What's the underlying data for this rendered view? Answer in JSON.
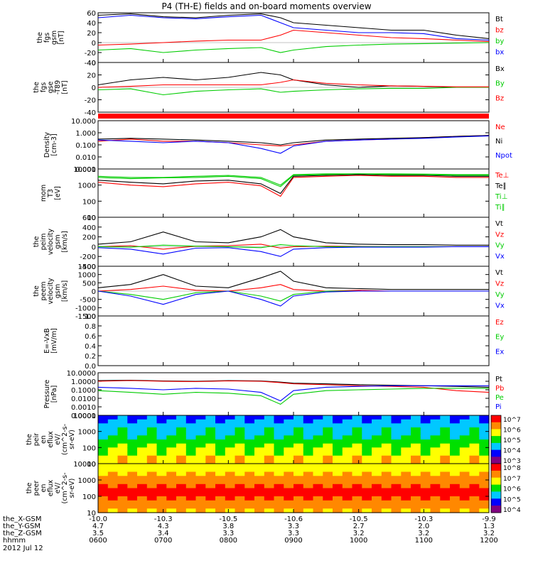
{
  "title": "P4 (TH-E) fields and on-board moments overview",
  "colors": {
    "black": "#000000",
    "red": "#ff0000",
    "green": "#00cc00",
    "blue": "#0000ff",
    "colorbar": [
      "#800080",
      "#0000ff",
      "#00c8ff",
      "#00e000",
      "#ffff00",
      "#ff8800",
      "#ff0000"
    ]
  },
  "chart_data": [
    {
      "type": "line",
      "ylabel": [
        "the",
        "fgs",
        "gsm",
        "[nT]"
      ],
      "ylim": [
        -40,
        60
      ],
      "yticks": [
        "60",
        "40",
        "20",
        "0",
        "-20",
        "-40"
      ],
      "legend": [
        {
          "name": "Bt",
          "color": "#000000"
        },
        {
          "name": "bz",
          "color": "#ff0000"
        },
        {
          "name": "by",
          "color": "#00cc00"
        },
        {
          "name": "bx",
          "color": "#0000ff"
        }
      ],
      "x_hours": [
        6.0,
        6.5,
        7.0,
        7.5,
        8.0,
        8.5,
        8.8,
        9.0,
        9.5,
        10.0,
        10.5,
        11.0,
        11.5,
        12.0
      ],
      "series": [
        {
          "name": "Bt",
          "values": [
            55,
            58,
            52,
            50,
            55,
            58,
            50,
            40,
            35,
            30,
            25,
            25,
            15,
            8
          ]
        },
        {
          "name": "bz",
          "values": [
            -5,
            -3,
            0,
            3,
            5,
            5,
            15,
            25,
            20,
            15,
            10,
            8,
            5,
            2
          ]
        },
        {
          "name": "by",
          "values": [
            -15,
            -12,
            -20,
            -15,
            -12,
            -10,
            -20,
            -15,
            -8,
            -5,
            -3,
            -2,
            -1,
            0
          ]
        },
        {
          "name": "bx",
          "values": [
            50,
            55,
            50,
            48,
            52,
            55,
            40,
            30,
            25,
            20,
            20,
            18,
            8,
            5
          ]
        }
      ]
    },
    {
      "type": "line",
      "ylabel": [
        "the",
        "fgs",
        "gse",
        "-T89",
        "[nT]"
      ],
      "ylim": [
        -50,
        50
      ],
      "yticks": [
        "40",
        "20",
        "0",
        "-20",
        "-40"
      ],
      "legend": [
        {
          "name": "Bx",
          "color": "#000000"
        },
        {
          "name": "By",
          "color": "#00cc00"
        },
        {
          "name": "Bz",
          "color": "#ff0000"
        }
      ],
      "x_hours": [
        6.0,
        6.5,
        7.0,
        7.5,
        8.0,
        8.5,
        8.8,
        9.0,
        9.5,
        10.0,
        10.5,
        11.0,
        11.5,
        12.0
      ],
      "series": [
        {
          "name": "Bx",
          "values": [
            5,
            15,
            20,
            15,
            20,
            30,
            25,
            15,
            5,
            0,
            3,
            2,
            0,
            0
          ]
        },
        {
          "name": "By",
          "values": [
            -5,
            -3,
            -15,
            -8,
            -5,
            -3,
            -10,
            -8,
            -5,
            -3,
            -2,
            -2,
            0,
            0
          ]
        },
        {
          "name": "Bz",
          "values": [
            0,
            2,
            5,
            5,
            5,
            5,
            10,
            15,
            8,
            5,
            3,
            2,
            1,
            1
          ]
        }
      ]
    },
    {
      "type": "line",
      "ylabel": [
        "Density",
        "[cm-3]"
      ],
      "ylim": [
        0.001,
        10
      ],
      "scale": "log",
      "yticks": [
        "10.000",
        "1.000",
        "0.100",
        "0.010",
        "0.001"
      ],
      "legend": [
        {
          "name": "Ne",
          "color": "#ff0000"
        },
        {
          "name": "Ni",
          "color": "#000000"
        },
        {
          "name": "Npot",
          "color": "#0000ff"
        }
      ],
      "x_hours": [
        6.0,
        6.5,
        7.0,
        7.5,
        8.0,
        8.5,
        8.8,
        9.0,
        9.5,
        10.0,
        10.5,
        11.0,
        11.5,
        12.0
      ],
      "series": [
        {
          "name": "Ne",
          "values": [
            0.2,
            0.3,
            0.2,
            0.2,
            0.15,
            0.1,
            0.08,
            0.1,
            0.2,
            0.25,
            0.3,
            0.4,
            0.5,
            0.6
          ]
        },
        {
          "name": "Ni",
          "values": [
            0.3,
            0.35,
            0.3,
            0.25,
            0.2,
            0.15,
            0.1,
            0.15,
            0.25,
            0.3,
            0.35,
            0.4,
            0.5,
            0.6
          ]
        },
        {
          "name": "Npot",
          "values": [
            0.25,
            0.2,
            0.15,
            0.2,
            0.15,
            0.05,
            0.02,
            0.08,
            0.2,
            0.25,
            0.3,
            0.35,
            0.45,
            0.55
          ]
        }
      ]
    },
    {
      "type": "line",
      "ylabel": [
        "mom",
        "T3",
        "[eV]"
      ],
      "ylim": [
        10,
        10000
      ],
      "scale": "log",
      "yticks": [
        "10000",
        "1000",
        "100",
        "10"
      ],
      "legend": [
        {
          "name": "Te⊥",
          "color": "#ff0000"
        },
        {
          "name": "Te∥",
          "color": "#000000"
        },
        {
          "name": "Ti⊥",
          "color": "#00cc00"
        },
        {
          "name": "Ti∥",
          "color": "#00cc00"
        }
      ],
      "x_hours": [
        6.0,
        6.5,
        7.0,
        7.5,
        8.0,
        8.5,
        8.8,
        9.0,
        9.5,
        10.0,
        10.5,
        11.0,
        11.5,
        12.0
      ],
      "series": [
        {
          "name": "Te⊥",
          "values": [
            1500,
            1000,
            800,
            1200,
            1500,
            900,
            200,
            3000,
            3500,
            4000,
            3500,
            3500,
            3000,
            3000
          ]
        },
        {
          "name": "Te∥",
          "values": [
            2000,
            1500,
            1200,
            1800,
            2000,
            1200,
            300,
            3500,
            4000,
            4500,
            4000,
            4000,
            3500,
            3500
          ]
        },
        {
          "name": "Ti⊥",
          "values": [
            3000,
            2500,
            2800,
            3000,
            3500,
            2500,
            800,
            4000,
            4500,
            5000,
            4500,
            4500,
            4000,
            4000
          ]
        },
        {
          "name": "Ti∥",
          "values": [
            3500,
            3000,
            3000,
            3500,
            4000,
            3000,
            1000,
            4500,
            5000,
            5000,
            5000,
            4800,
            4500,
            4500
          ]
        }
      ]
    },
    {
      "type": "line",
      "ylabel": [
        "the",
        "peim",
        "velocity",
        "gsm",
        "[km/s]"
      ],
      "ylim": [
        -400,
        600
      ],
      "yticks": [
        "600",
        "400",
        "200",
        "0",
        "-200",
        "-400"
      ],
      "legend": [
        {
          "name": "Vt",
          "color": "#000000"
        },
        {
          "name": "Vz",
          "color": "#ff0000"
        },
        {
          "name": "Vy",
          "color": "#00cc00"
        },
        {
          "name": "Vx",
          "color": "#0000ff"
        }
      ],
      "x_hours": [
        6.0,
        6.5,
        7.0,
        7.5,
        8.0,
        8.5,
        8.8,
        9.0,
        9.5,
        10.0,
        10.5,
        11.0,
        11.5,
        12.0
      ],
      "series": [
        {
          "name": "Vt",
          "values": [
            50,
            100,
            300,
            100,
            80,
            200,
            350,
            200,
            80,
            50,
            40,
            40,
            30,
            30
          ]
        },
        {
          "name": "Vz",
          "values": [
            0,
            20,
            -50,
            10,
            20,
            50,
            -30,
            0,
            10,
            5,
            0,
            0,
            0,
            0
          ]
        },
        {
          "name": "Vy",
          "values": [
            0,
            -10,
            30,
            10,
            0,
            -20,
            40,
            20,
            0,
            0,
            0,
            0,
            0,
            0
          ]
        },
        {
          "name": "Vx",
          "values": [
            -20,
            -50,
            -150,
            -30,
            -20,
            -100,
            -200,
            -50,
            -20,
            -10,
            -10,
            -10,
            0,
            0
          ]
        }
      ]
    },
    {
      "type": "line",
      "ylabel": [
        "the",
        "peem",
        "velocity",
        "gsm",
        "[km/s]"
      ],
      "ylim": [
        -1500,
        1500
      ],
      "yticks": [
        "1500",
        "1000",
        "500",
        "0",
        "-500",
        "-1000",
        "-1500"
      ],
      "legend": [
        {
          "name": "Vt",
          "color": "#000000"
        },
        {
          "name": "Vz",
          "color": "#ff0000"
        },
        {
          "name": "Vy",
          "color": "#00cc00"
        },
        {
          "name": "Vx",
          "color": "#0000ff"
        }
      ],
      "x_hours": [
        6.0,
        6.5,
        7.0,
        7.5,
        8.0,
        8.5,
        8.8,
        9.0,
        9.5,
        10.0,
        10.5,
        11.0,
        11.5,
        12.0
      ],
      "series": [
        {
          "name": "Vt",
          "values": [
            200,
            400,
            1000,
            300,
            200,
            800,
            1200,
            600,
            200,
            150,
            100,
            100,
            100,
            100
          ]
        },
        {
          "name": "Vz",
          "values": [
            0,
            100,
            300,
            50,
            0,
            200,
            400,
            100,
            0,
            50,
            0,
            0,
            0,
            0
          ]
        },
        {
          "name": "Vy",
          "values": [
            0,
            -200,
            -500,
            -100,
            0,
            -300,
            -600,
            -200,
            0,
            0,
            0,
            0,
            0,
            0
          ]
        },
        {
          "name": "Vx",
          "values": [
            0,
            -300,
            -800,
            -200,
            0,
            -500,
            -900,
            -300,
            -50,
            0,
            0,
            0,
            0,
            0
          ]
        }
      ]
    },
    {
      "type": "line",
      "ylabel": [
        "E=-VxB",
        "[mV/m]"
      ],
      "ylim": [
        0,
        1
      ],
      "yticks": [
        "1.0",
        "0.8",
        "0.6",
        "0.4",
        "0.2",
        "0.0"
      ],
      "legend": [
        {
          "name": "Ez",
          "color": "#ff0000"
        },
        {
          "name": "Ey",
          "color": "#00cc00"
        },
        {
          "name": "Ex",
          "color": "#0000ff"
        }
      ],
      "series": []
    },
    {
      "type": "line",
      "ylabel": [
        "Pressure",
        "[nPa]"
      ],
      "ylim": [
        0.0001,
        10
      ],
      "scale": "log",
      "yticks": [
        "10.0000",
        "1.0000",
        "0.1000",
        "0.0100",
        "0.0010",
        "0.0001"
      ],
      "legend": [
        {
          "name": "Pt",
          "color": "#000000"
        },
        {
          "name": "Pb",
          "color": "#ff0000"
        },
        {
          "name": "Pe",
          "color": "#00cc00"
        },
        {
          "name": "Pi",
          "color": "#0000ff"
        }
      ],
      "x_hours": [
        6.0,
        6.5,
        7.0,
        7.5,
        8.0,
        8.5,
        8.8,
        9.0,
        9.5,
        10.0,
        10.5,
        11.0,
        11.5,
        12.0
      ],
      "series": [
        {
          "name": "Pt",
          "values": [
            1.2,
            1.3,
            1.1,
            1.0,
            1.2,
            1.1,
            0.8,
            0.6,
            0.5,
            0.4,
            0.35,
            0.3,
            0.25,
            0.2
          ]
        },
        {
          "name": "Pb",
          "values": [
            1.0,
            1.2,
            1.0,
            0.9,
            1.1,
            1.0,
            0.7,
            0.5,
            0.4,
            0.3,
            0.25,
            0.2,
            0.08,
            0.05
          ]
        },
        {
          "name": "Pe",
          "values": [
            0.08,
            0.05,
            0.03,
            0.05,
            0.04,
            0.02,
            0.002,
            0.03,
            0.08,
            0.1,
            0.12,
            0.15,
            0.15,
            0.15
          ]
        },
        {
          "name": "Pi",
          "values": [
            0.2,
            0.15,
            0.1,
            0.15,
            0.12,
            0.05,
            0.005,
            0.08,
            0.2,
            0.25,
            0.3,
            0.3,
            0.3,
            0.3
          ]
        }
      ]
    },
    {
      "type": "heatmap",
      "ylabel": [
        "the",
        "peir",
        "en",
        "eflux",
        "eV/",
        "(cm^2-s-",
        "sr-eV)"
      ],
      "ylim": [
        10,
        20000
      ],
      "scale": "log",
      "yticks": [
        "10000",
        "1000",
        "100",
        "10"
      ],
      "colorbar_labels": [
        "10^7",
        "10^6",
        "10^5",
        "10^4",
        "10^3"
      ]
    },
    {
      "type": "heatmap",
      "ylabel": [
        "the",
        "peer",
        "en",
        "eflux",
        "eV/",
        "(cm^2-s-",
        "sr-eV)"
      ],
      "ylim": [
        10,
        20000
      ],
      "scale": "log",
      "yticks": [
        "10000",
        "1000",
        "100",
        "10"
      ],
      "colorbar_labels": [
        "10^8",
        "10^7",
        "10^6",
        "10^5",
        "10^4"
      ]
    }
  ],
  "x_axis": {
    "rows": [
      {
        "label": "the_X-GSM",
        "values": [
          "-10.0",
          "-10.3",
          "-10.5",
          "-10.6",
          "-10.5",
          "-10.3",
          "-9.9"
        ]
      },
      {
        "label": "the_Y-GSM",
        "values": [
          "4.7",
          "4.3",
          "3.8",
          "3.3",
          "2.7",
          "2.0",
          "1.3"
        ]
      },
      {
        "label": "the_Z-GSM",
        "values": [
          "3.5",
          "3.4",
          "3.3",
          "3.3",
          "3.2",
          "3.2",
          "3.2"
        ]
      },
      {
        "label": "hhmm",
        "values": [
          "0600",
          "0700",
          "0800",
          "0900",
          "1000",
          "1100",
          "1200"
        ]
      }
    ],
    "date": "2012 Jul 12"
  }
}
